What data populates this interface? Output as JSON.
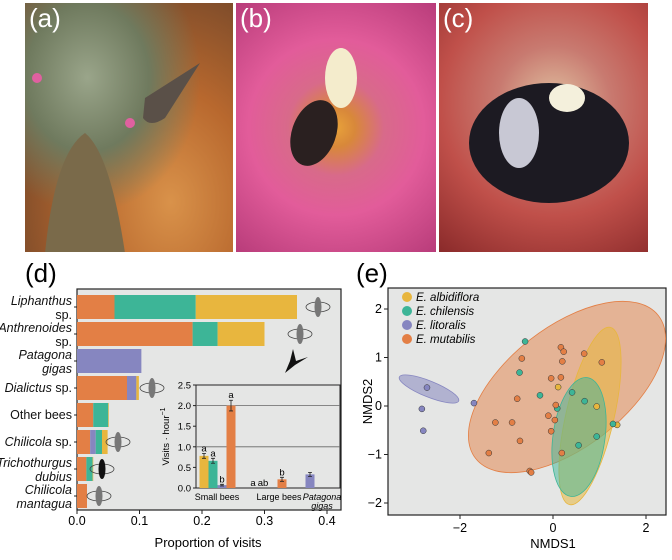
{
  "panels": {
    "a": "(a)",
    "b": "(b)",
    "c": "(c)",
    "d": "(d)",
    "e": "(e)"
  },
  "colors": {
    "albidiflora": "#e8b63e",
    "chilensis": "#3db597",
    "litoralis": "#8686c0",
    "mutabilis": "#e37f45",
    "panel_bg": "#e5e6e5"
  },
  "chart_data": [
    {
      "type": "bar",
      "orientation": "horizontal-stacked",
      "xlabel": "Proportion of visits",
      "xlim": [
        0,
        0.42
      ],
      "xticks": [
        "0.0",
        "0.1",
        "0.2",
        "0.3",
        "0.4"
      ],
      "categories": [
        {
          "name": "Liphanthus",
          "suffix": "sp.",
          "italic": true,
          "wrap": true
        },
        {
          "name": "Anthrenoides",
          "suffix": "sp.",
          "italic": true,
          "wrap": true
        },
        {
          "name": "Patagona",
          "suffix": "gigas",
          "italic": true,
          "wrap": true,
          "suffix_italic": true
        },
        {
          "name": "Dialictus",
          "suffix": "sp.",
          "italic": true,
          "wrap": false
        },
        {
          "name": "Other bees",
          "suffix": "",
          "italic": false,
          "wrap": false
        },
        {
          "name": "Chilicola",
          "suffix": "sp.",
          "italic": true,
          "wrap": false
        },
        {
          "name": "Trichothurgus",
          "suffix": "dubius",
          "italic": true,
          "wrap": true,
          "suffix_italic": true
        },
        {
          "name": "Chilicola",
          "suffix": "mantagua",
          "italic": true,
          "wrap": true,
          "suffix_italic": true
        }
      ],
      "series": [
        {
          "name": "E. mutabilis",
          "key": "mutabilis",
          "values": [
            0.06,
            0.185,
            0,
            0.08,
            0.026,
            0.021,
            0.015,
            0.016
          ]
        },
        {
          "name": "E. litoralis",
          "key": "litoralis",
          "values": [
            0,
            0,
            0.103,
            0.015,
            0,
            0.009,
            0,
            0
          ]
        },
        {
          "name": "E. chilensis",
          "key": "chilensis",
          "values": [
            0.13,
            0.04,
            0,
            0,
            0.024,
            0.01,
            0.01,
            0
          ]
        },
        {
          "name": "E. albidiflora",
          "key": "albidiflora",
          "values": [
            0.162,
            0.075,
            0,
            0.004,
            0.001,
            0.009,
            0.001,
            0
          ]
        }
      ]
    },
    {
      "type": "bar",
      "title": "inset",
      "ylabel": "Visits · hour",
      "ylabel_sup": "−1",
      "ylim": [
        0,
        2.5
      ],
      "yticks": [
        "0.0",
        "0.5",
        "1.0",
        "1.5",
        "2.0",
        "2.5"
      ],
      "grid_y": [
        1.0,
        2.0
      ],
      "categories": [
        {
          "name": "Small bees",
          "italic": false
        },
        {
          "name": "Large bees",
          "italic": false
        },
        {
          "name": "Patagona",
          "suffix": "gigas",
          "italic": true
        }
      ],
      "series": [
        {
          "key": "albidiflora",
          "values": [
            0.78,
            0,
            0
          ],
          "err": [
            0.06,
            0,
            0
          ],
          "letters": [
            "a",
            "a",
            ""
          ]
        },
        {
          "key": "chilensis",
          "values": [
            0.66,
            0,
            0
          ],
          "err": [
            0.06,
            0,
            0
          ],
          "letters": [
            "a",
            "ab",
            ""
          ]
        },
        {
          "key": "litoralis",
          "values": [
            0.07,
            0,
            0.33
          ],
          "err": [
            0.02,
            0,
            0.05
          ],
          "letters": [
            "b",
            "",
            ""
          ]
        },
        {
          "key": "mutabilis",
          "values": [
            2.0,
            0.21,
            0
          ],
          "err": [
            0.13,
            0.05,
            0
          ],
          "letters": [
            "a",
            "b",
            ""
          ]
        }
      ]
    },
    {
      "type": "scatter",
      "xlabel": "NMDS1",
      "ylabel": "NMDS2",
      "xlim": [
        -3.5,
        2.4
      ],
      "ylim": [
        -2.2,
        2.3
      ],
      "xticks": [
        "−2",
        "0",
        "2"
      ],
      "yticks": [
        "−2",
        "−1",
        "0",
        "1",
        "2"
      ],
      "legend": "top-left",
      "series": [
        {
          "name": "E. albidiflora",
          "key": "albidiflora",
          "points": [
            [
              0.11,
              0.39
            ],
            [
              0.94,
              -0.01
            ],
            [
              1.38,
              -0.39
            ]
          ]
        },
        {
          "name": "E. chilensis",
          "key": "chilensis",
          "points": [
            [
              -0.6,
              1.33
            ],
            [
              -0.72,
              0.69
            ],
            [
              -0.28,
              0.22
            ],
            [
              0.41,
              0.28
            ],
            [
              0.68,
              0.1
            ],
            [
              0.09,
              -0.05
            ],
            [
              1.29,
              -0.37
            ],
            [
              0.94,
              -0.63
            ],
            [
              0.55,
              -0.81
            ]
          ]
        },
        {
          "name": "E. litoralis",
          "key": "litoralis",
          "points": [
            [
              -2.71,
              0.38
            ],
            [
              -2.82,
              -0.06
            ],
            [
              -2.79,
              -0.51
            ],
            [
              -1.7,
              0.06
            ]
          ]
        },
        {
          "name": "E. mutabilis",
          "key": "mutabilis",
          "points": [
            [
              0.17,
              1.21
            ],
            [
              0.23,
              1.12
            ],
            [
              0.2,
              0.92
            ],
            [
              -0.67,
              0.98
            ],
            [
              0.67,
              1.08
            ],
            [
              1.05,
              0.9
            ],
            [
              -0.04,
              0.57
            ],
            [
              0.17,
              0.59
            ],
            [
              -0.77,
              0.15
            ],
            [
              0.06,
              0.02
            ],
            [
              -0.1,
              -0.2
            ],
            [
              0.04,
              -0.29
            ],
            [
              -1.24,
              -0.34
            ],
            [
              -0.88,
              -0.34
            ],
            [
              -0.04,
              -0.52
            ],
            [
              -0.71,
              -0.72
            ],
            [
              -1.38,
              -0.97
            ],
            [
              0.19,
              -0.97
            ],
            [
              -0.5,
              -1.34
            ],
            [
              -0.47,
              -1.37
            ]
          ]
        }
      ]
    }
  ]
}
